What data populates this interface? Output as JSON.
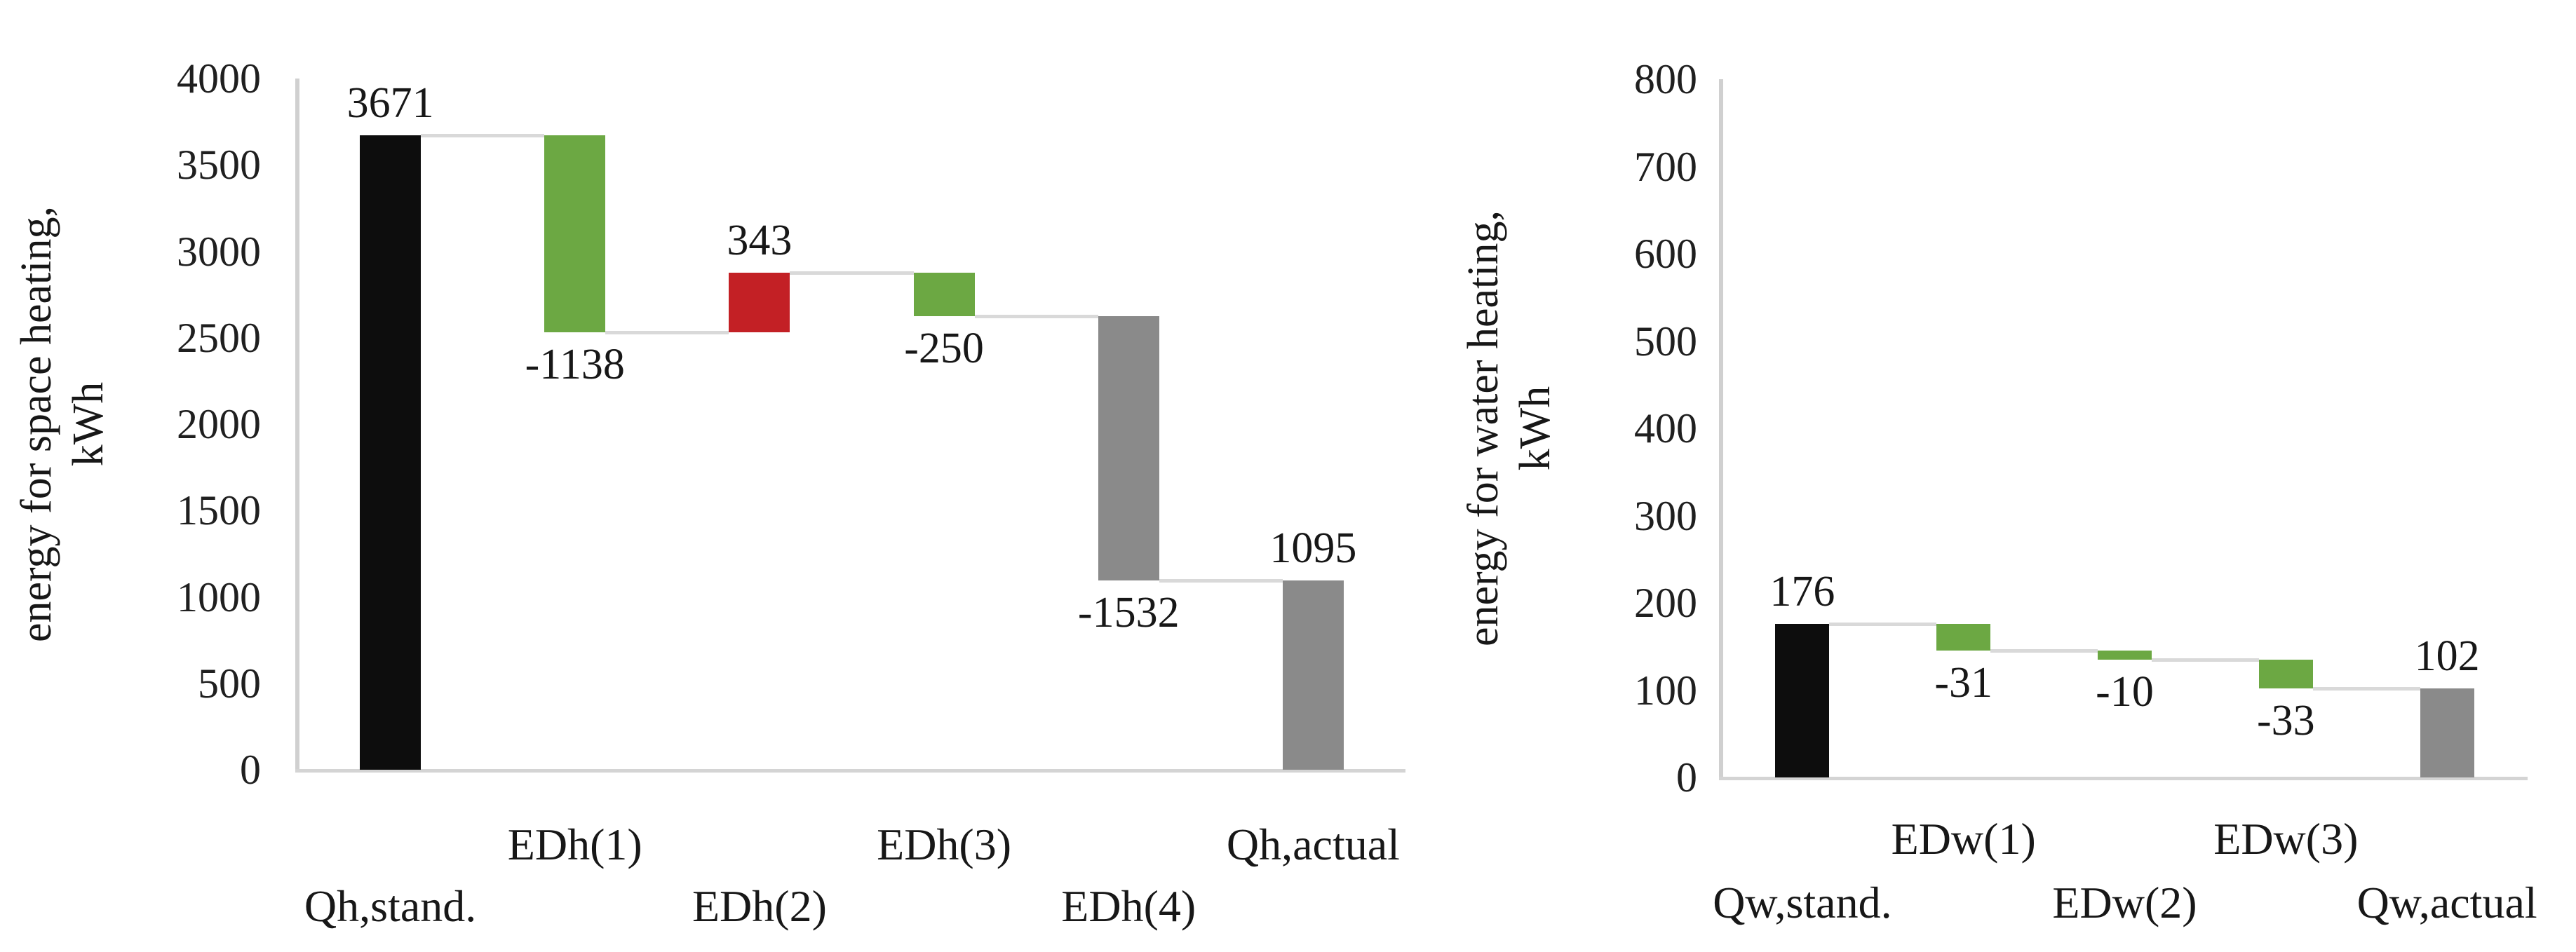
{
  "figure": {
    "background": "#ffffff",
    "description": "Two waterfall bar charts side by side showing energy demand reductions"
  },
  "colors": {
    "standard_bar": "#0d0d0d",
    "decrease_bar": "#6ca843",
    "increase_bar": "#c32025",
    "actual_bar": "#8a8a8a",
    "connector_line": "#d9d9d9",
    "axis_line": "#d0d0d0",
    "text": "#171717"
  },
  "chart_data": [
    {
      "type": "bar",
      "subtype": "waterfall",
      "title": "",
      "ylabel_lines": [
        "energy for space heating,",
        "kWh"
      ],
      "xlabel": "",
      "ylim": [
        0,
        4000
      ],
      "ytick_interval": 500,
      "ytick_labels": [
        "0",
        "500",
        "1000",
        "1500",
        "2000",
        "2500",
        "3000",
        "3500",
        "4000"
      ],
      "grid": false,
      "legend": "none",
      "categories": [
        "Qh,stand.",
        "EDh(1)",
        "EDh(2)",
        "EDh(3)",
        "EDh(4)",
        "Qh,actual"
      ],
      "values": [
        3671,
        -1138,
        343,
        -250,
        -1532,
        1095
      ],
      "bars": [
        {
          "category": "Qh,stand.",
          "label": "3671",
          "start": 0,
          "end": 3671,
          "color": "#0d0d0d",
          "label_side": "above",
          "category_row": "lower"
        },
        {
          "category": "EDh(1)",
          "label": "-1138",
          "start": 3671,
          "end": 2533,
          "color": "#6ca843",
          "label_side": "below",
          "category_row": "upper"
        },
        {
          "category": "EDh(2)",
          "label": "343",
          "start": 2533,
          "end": 2876,
          "color": "#c32025",
          "label_side": "above",
          "category_row": "lower"
        },
        {
          "category": "EDh(3)",
          "label": "-250",
          "start": 2876,
          "end": 2626,
          "color": "#6ca843",
          "label_side": "below",
          "category_row": "upper"
        },
        {
          "category": "EDh(4)",
          "label": "-1532",
          "start": 2626,
          "end": 1094,
          "color": "#8a8a8a",
          "label_side": "below",
          "category_row": "lower"
        },
        {
          "category": "Qh,actual",
          "label": "1095",
          "start": 0,
          "end": 1095,
          "color": "#8a8a8a",
          "label_side": "above",
          "category_row": "upper"
        }
      ]
    },
    {
      "type": "bar",
      "subtype": "waterfall",
      "title": "",
      "ylabel_lines": [
        "energy for water heating,",
        "kWh"
      ],
      "xlabel": "",
      "ylim": [
        0,
        800
      ],
      "ytick_interval": 100,
      "ytick_labels": [
        "0",
        "100",
        "200",
        "300",
        "400",
        "500",
        "600",
        "700",
        "800"
      ],
      "grid": false,
      "legend": "none",
      "categories": [
        "Qw,stand.",
        "EDw(1)",
        "EDw(2)",
        "EDw(3)",
        "Qw,actual"
      ],
      "values": [
        176,
        -31,
        -10,
        -33,
        102
      ],
      "bars": [
        {
          "category": "Qw,stand.",
          "label": "176",
          "start": 0,
          "end": 176,
          "color": "#0d0d0d",
          "label_side": "above",
          "category_row": "lower"
        },
        {
          "category": "EDw(1)",
          "label": "-31",
          "start": 176,
          "end": 145,
          "color": "#6ca843",
          "label_side": "below",
          "category_row": "upper"
        },
        {
          "category": "EDw(2)",
          "label": "-10",
          "start": 145,
          "end": 135,
          "color": "#6ca843",
          "label_side": "below",
          "category_row": "lower"
        },
        {
          "category": "EDw(3)",
          "label": "-33",
          "start": 135,
          "end": 102,
          "color": "#6ca843",
          "label_side": "below",
          "category_row": "upper"
        },
        {
          "category": "Qw,actual",
          "label": "102",
          "start": 0,
          "end": 102,
          "color": "#8a8a8a",
          "label_side": "above",
          "category_row": "lower"
        }
      ]
    }
  ]
}
